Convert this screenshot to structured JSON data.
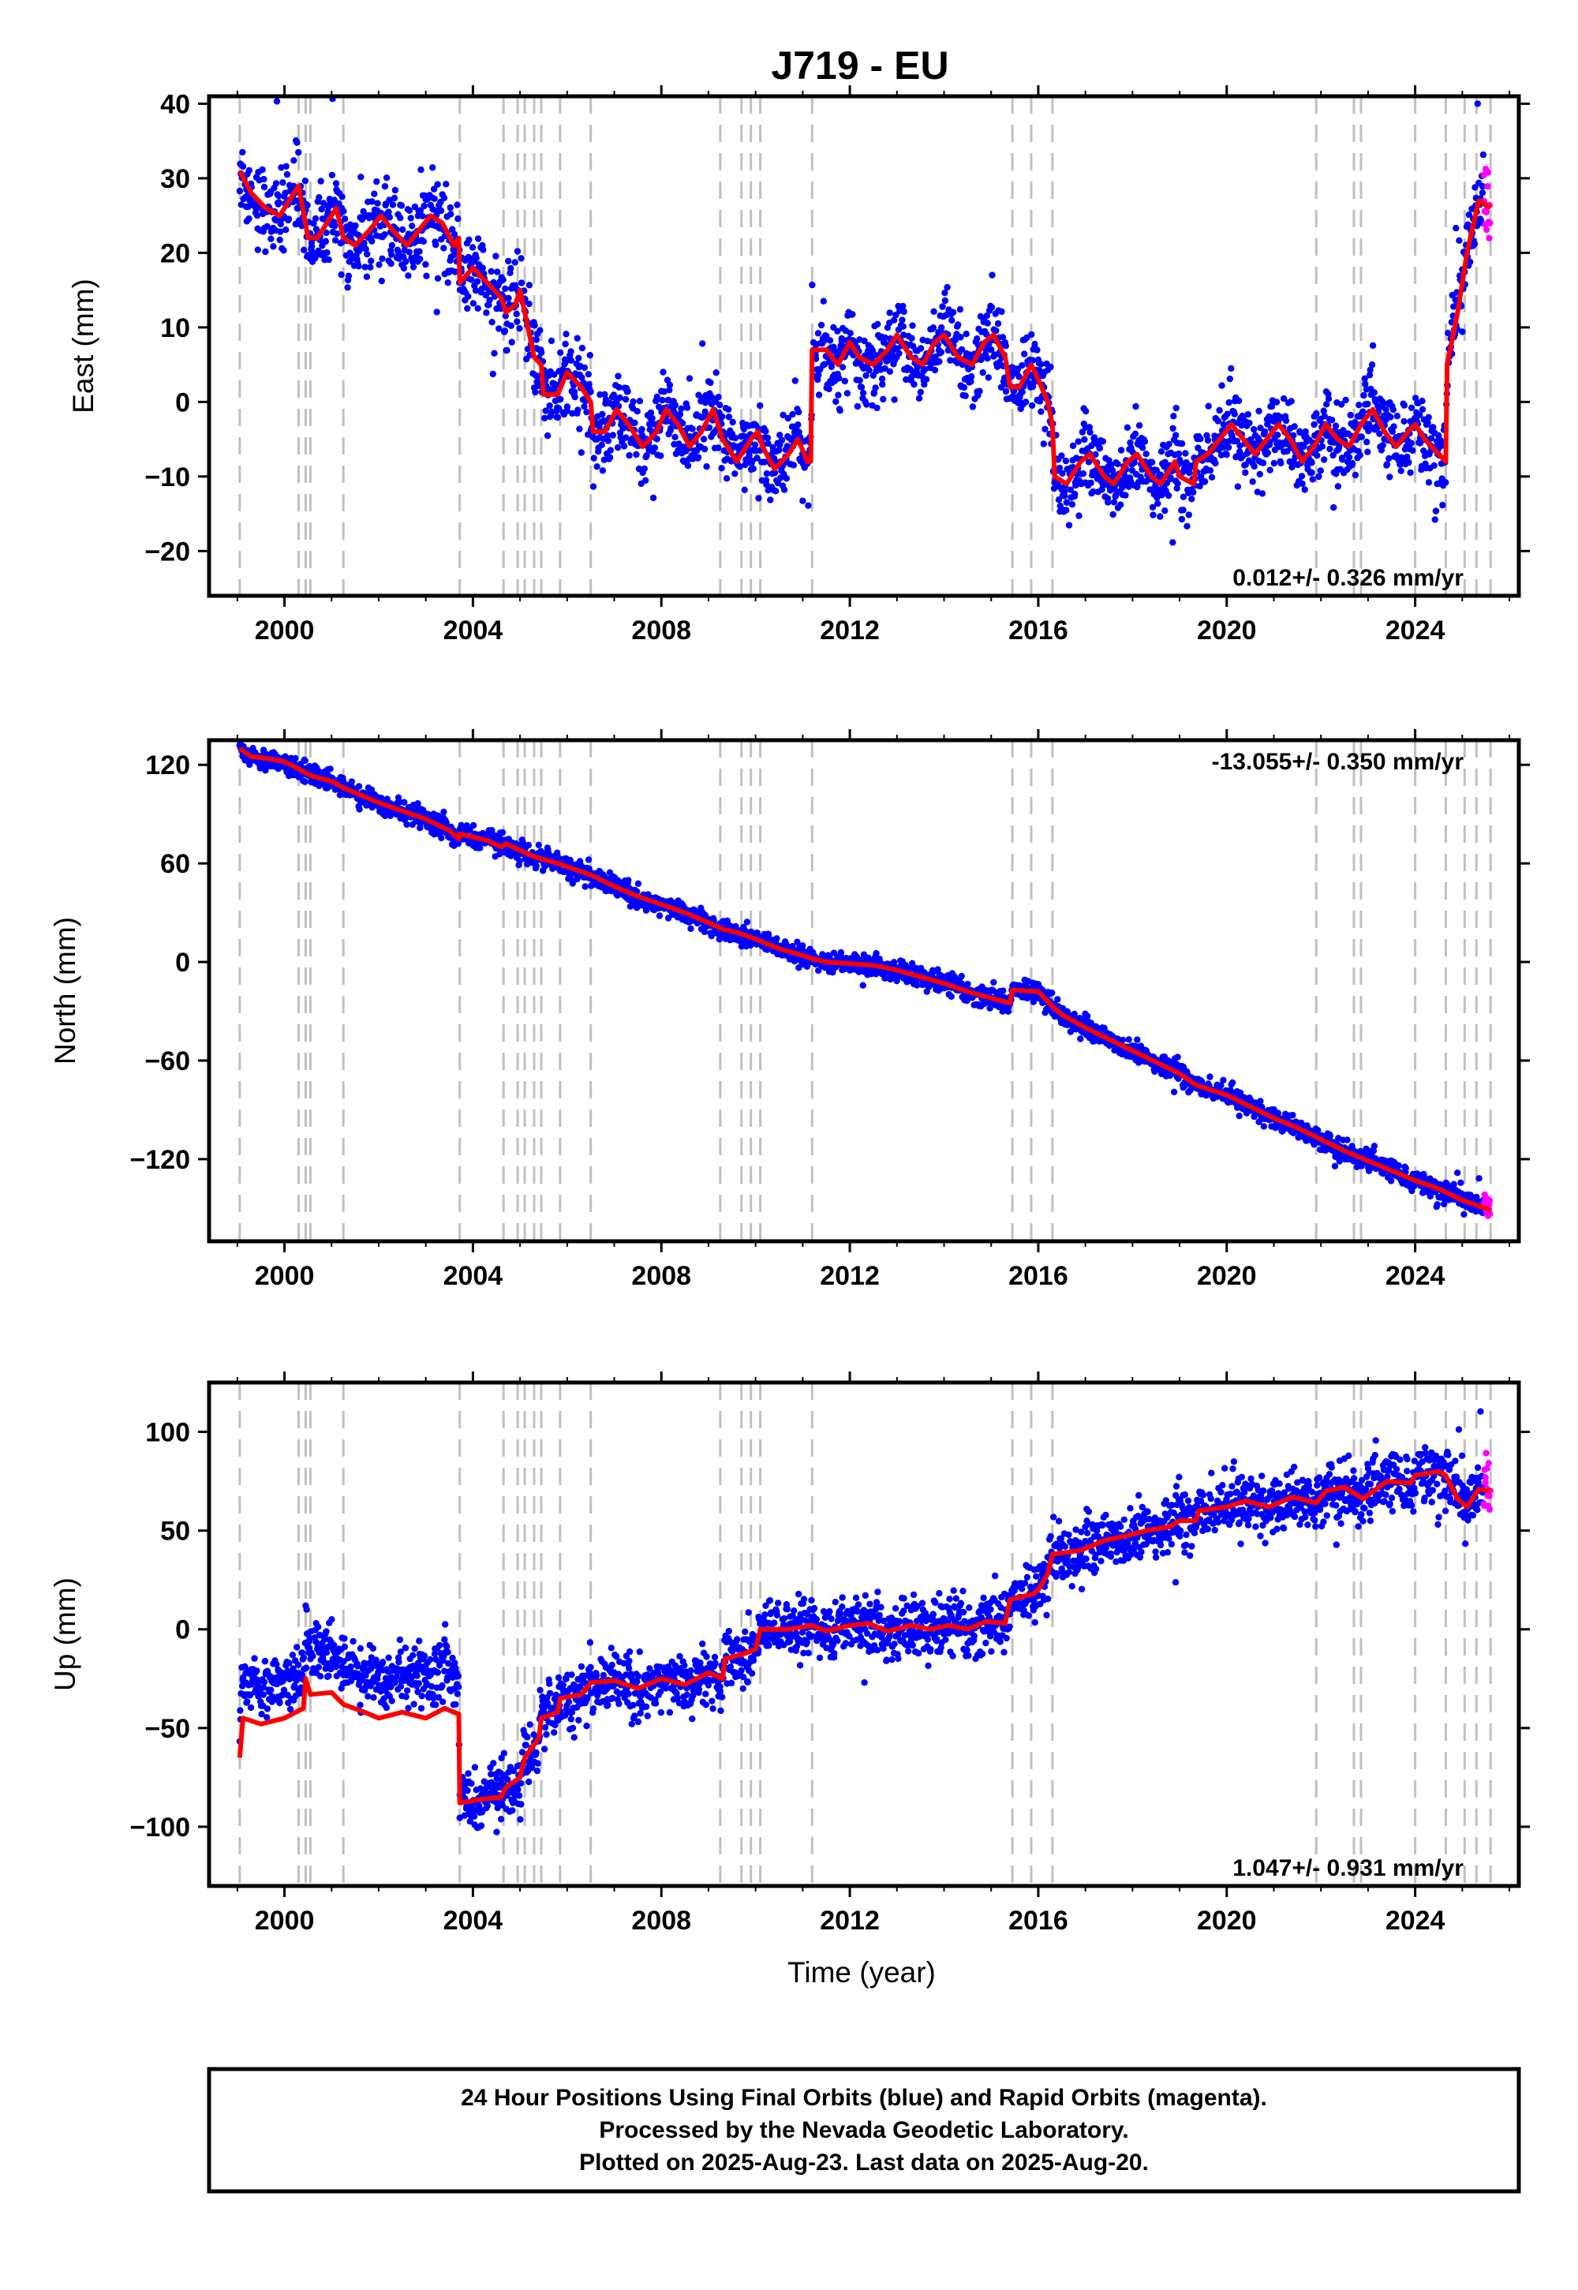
{
  "title": "J719 - EU",
  "xlabel": "Time (year)",
  "colors": {
    "final": "#0000ff",
    "rapid": "#ff00ff",
    "model": "#ff0000",
    "break": "#c0c0c0"
  },
  "footer": {
    "line1": "24 Hour Positions Using Final Orbits (blue) and Rapid Orbits (magenta).",
    "line2": "Processed by the Nevada Geodetic Laboratory.",
    "line3": "Plotted on 2025-Aug-23. Last data on 2025-Aug-20."
  },
  "chart_data": [
    {
      "type": "scatter",
      "ylabel": "East (mm)",
      "rate_label": "0.012+/- 0.326 mm/yr",
      "xlim": [
        1998.4,
        2026.2
      ],
      "ylim": [
        -26,
        41
      ],
      "xticks": [
        2000,
        2004,
        2008,
        2012,
        2016,
        2020,
        2024
      ],
      "yticks": [
        -20,
        -10,
        0,
        10,
        20,
        30,
        40
      ],
      "model": [
        [
          1999.05,
          31
        ],
        [
          1999.3,
          28
        ],
        [
          1999.6,
          26
        ],
        [
          1999.9,
          25
        ],
        [
          2000.1,
          27
        ],
        [
          2000.3,
          29
        ],
        [
          2000.5,
          22
        ],
        [
          2000.7,
          22
        ],
        [
          2000.9,
          24
        ],
        [
          2001.1,
          26
        ],
        [
          2001.25,
          22
        ],
        [
          2001.5,
          21
        ],
        [
          2001.8,
          23
        ],
        [
          2002.05,
          25
        ],
        [
          2002.3,
          23
        ],
        [
          2002.6,
          21
        ],
        [
          2002.85,
          23
        ],
        [
          2003.1,
          25
        ],
        [
          2003.35,
          24
        ],
        [
          2003.6,
          21
        ],
        [
          2003.7,
          22
        ],
        [
          2003.72,
          16
        ],
        [
          2004.0,
          18
        ],
        [
          2004.3,
          16
        ],
        [
          2004.6,
          14
        ],
        [
          2004.7,
          12
        ],
        [
          2004.9,
          13
        ],
        [
          2005.0,
          15
        ],
        [
          2005.1,
          12
        ],
        [
          2005.3,
          6
        ],
        [
          2005.45,
          5
        ],
        [
          2005.5,
          1
        ],
        [
          2005.8,
          1
        ],
        [
          2006.0,
          4
        ],
        [
          2006.3,
          2
        ],
        [
          2006.5,
          0
        ],
        [
          2006.55,
          -4
        ],
        [
          2006.8,
          -4
        ],
        [
          2007.05,
          -1
        ],
        [
          2007.3,
          -3
        ],
        [
          2007.6,
          -6
        ],
        [
          2007.9,
          -4
        ],
        [
          2008.1,
          -1
        ],
        [
          2008.35,
          -3
        ],
        [
          2008.6,
          -6
        ],
        [
          2008.85,
          -4
        ],
        [
          2009.1,
          -1
        ],
        [
          2009.3,
          -5
        ],
        [
          2009.6,
          -8
        ],
        [
          2009.9,
          -5
        ],
        [
          2010.05,
          -4
        ],
        [
          2010.15,
          -6
        ],
        [
          2010.4,
          -9
        ],
        [
          2010.7,
          -7
        ],
        [
          2010.9,
          -5
        ],
        [
          2011.1,
          -8
        ],
        [
          2011.17,
          -8
        ],
        [
          2011.2,
          7
        ],
        [
          2011.5,
          7
        ],
        [
          2011.75,
          5
        ],
        [
          2012.0,
          8
        ],
        [
          2012.2,
          6
        ],
        [
          2012.5,
          5
        ],
        [
          2012.8,
          7
        ],
        [
          2013.0,
          9
        ],
        [
          2013.3,
          6
        ],
        [
          2013.55,
          5
        ],
        [
          2013.8,
          8
        ],
        [
          2014.0,
          9
        ],
        [
          2014.3,
          6
        ],
        [
          2014.6,
          5
        ],
        [
          2014.85,
          8
        ],
        [
          2015.05,
          9
        ],
        [
          2015.3,
          6
        ],
        [
          2015.4,
          2
        ],
        [
          2015.6,
          2
        ],
        [
          2015.85,
          5
        ],
        [
          2016.0,
          3
        ],
        [
          2016.2,
          0
        ],
        [
          2016.3,
          -3
        ],
        [
          2016.35,
          -10
        ],
        [
          2016.6,
          -11
        ],
        [
          2016.9,
          -8
        ],
        [
          2017.1,
          -7
        ],
        [
          2017.4,
          -10
        ],
        [
          2017.6,
          -11
        ],
        [
          2017.9,
          -8
        ],
        [
          2018.1,
          -7
        ],
        [
          2018.4,
          -10
        ],
        [
          2018.6,
          -11
        ],
        [
          2018.9,
          -8
        ],
        [
          2019.0,
          -10
        ],
        [
          2019.3,
          -11
        ],
        [
          2019.35,
          -8
        ],
        [
          2019.6,
          -7
        ],
        [
          2019.85,
          -5
        ],
        [
          2020.1,
          -3
        ],
        [
          2020.35,
          -5
        ],
        [
          2020.6,
          -7
        ],
        [
          2020.85,
          -5
        ],
        [
          2021.1,
          -3
        ],
        [
          2021.35,
          -5
        ],
        [
          2021.6,
          -8
        ],
        [
          2021.85,
          -6
        ],
        [
          2022.1,
          -3
        ],
        [
          2022.35,
          -5
        ],
        [
          2022.6,
          -6
        ],
        [
          2022.85,
          -3
        ],
        [
          2023.1,
          -1
        ],
        [
          2023.35,
          -4
        ],
        [
          2023.6,
          -6
        ],
        [
          2023.85,
          -4
        ],
        [
          2024.0,
          -3
        ],
        [
          2024.2,
          -5
        ],
        [
          2024.5,
          -7
        ],
        [
          2024.65,
          -8
        ],
        [
          2024.68,
          5
        ],
        [
          2024.9,
          12
        ],
        [
          2025.1,
          20
        ],
        [
          2025.35,
          27
        ],
        [
          2025.6,
          26
        ]
      ]
    },
    {
      "type": "scatter",
      "ylabel": "North (mm)",
      "rate_label": "-13.055+/- 0.350 mm/yr",
      "xlim": [
        1998.4,
        2026.2
      ],
      "ylim": [
        -170,
        135
      ],
      "xticks": [
        2000,
        2004,
        2008,
        2012,
        2016,
        2020,
        2024
      ],
      "yticks": [
        -120,
        -60,
        0,
        60,
        120
      ],
      "model": [
        [
          1999.05,
          130
        ],
        [
          1999.3,
          125
        ],
        [
          1999.6,
          124
        ],
        [
          2000.0,
          122
        ],
        [
          2000.4,
          116
        ],
        [
          2000.6,
          113
        ],
        [
          2001.0,
          110
        ],
        [
          2001.25,
          106
        ],
        [
          2002.0,
          97
        ],
        [
          2002.5,
          92
        ],
        [
          2003.0,
          87
        ],
        [
          2003.5,
          80
        ],
        [
          2003.7,
          75
        ],
        [
          2003.72,
          78
        ],
        [
          2004.3,
          74
        ],
        [
          2004.6,
          70
        ],
        [
          2004.7,
          72
        ],
        [
          2005.0,
          68
        ],
        [
          2005.3,
          64
        ],
        [
          2005.8,
          60
        ],
        [
          2006.5,
          53
        ],
        [
          2007.0,
          46
        ],
        [
          2007.5,
          40
        ],
        [
          2008.0,
          35
        ],
        [
          2008.5,
          30
        ],
        [
          2009.0,
          24
        ],
        [
          2009.3,
          20
        ],
        [
          2009.6,
          18
        ],
        [
          2010.0,
          14
        ],
        [
          2010.5,
          8
        ],
        [
          2011.0,
          4
        ],
        [
          2011.2,
          2
        ],
        [
          2011.5,
          0
        ],
        [
          2012.0,
          -1
        ],
        [
          2012.5,
          -2
        ],
        [
          2013.0,
          -5
        ],
        [
          2013.5,
          -9
        ],
        [
          2014.0,
          -13
        ],
        [
          2014.5,
          -18
        ],
        [
          2015.0,
          -22
        ],
        [
          2015.4,
          -25
        ],
        [
          2015.45,
          -17
        ],
        [
          2016.0,
          -18
        ],
        [
          2016.3,
          -27
        ],
        [
          2016.5,
          -32
        ],
        [
          2017.0,
          -40
        ],
        [
          2017.5,
          -47
        ],
        [
          2018.0,
          -54
        ],
        [
          2018.5,
          -61
        ],
        [
          2019.0,
          -68
        ],
        [
          2019.35,
          -75
        ],
        [
          2020.0,
          -81
        ],
        [
          2020.5,
          -88
        ],
        [
          2021.0,
          -95
        ],
        [
          2021.5,
          -101
        ],
        [
          2022.0,
          -108
        ],
        [
          2022.5,
          -115
        ],
        [
          2023.0,
          -121
        ],
        [
          2023.5,
          -127
        ],
        [
          2024.0,
          -133
        ],
        [
          2024.5,
          -138
        ],
        [
          2025.0,
          -145
        ],
        [
          2025.6,
          -151
        ]
      ]
    },
    {
      "type": "scatter",
      "ylabel": "Up (mm)",
      "rate_label": "1.047+/- 0.931 mm/yr",
      "xlim": [
        1998.4,
        2026.2
      ],
      "ylim": [
        -130,
        125
      ],
      "xticks": [
        2000,
        2004,
        2008,
        2012,
        2016,
        2020,
        2024
      ],
      "yticks": [
        -100,
        -50,
        0,
        50,
        100
      ],
      "model": [
        [
          1999.05,
          -65
        ],
        [
          1999.12,
          -45
        ],
        [
          1999.5,
          -48
        ],
        [
          2000.0,
          -45
        ],
        [
          2000.4,
          -40
        ],
        [
          2000.45,
          -25
        ],
        [
          2000.55,
          -33
        ],
        [
          2001.0,
          -32
        ],
        [
          2001.25,
          -38
        ],
        [
          2001.7,
          -42
        ],
        [
          2002.0,
          -45
        ],
        [
          2002.5,
          -42
        ],
        [
          2003.0,
          -45
        ],
        [
          2003.4,
          -40
        ],
        [
          2003.7,
          -43
        ],
        [
          2003.72,
          -88
        ],
        [
          2004.2,
          -86
        ],
        [
          2004.6,
          -85
        ],
        [
          2004.7,
          -80
        ],
        [
          2005.0,
          -75
        ],
        [
          2005.1,
          -65
        ],
        [
          2005.4,
          -55
        ],
        [
          2005.45,
          -45
        ],
        [
          2005.8,
          -42
        ],
        [
          2005.85,
          -35
        ],
        [
          2006.3,
          -33
        ],
        [
          2006.5,
          -27
        ],
        [
          2007.0,
          -26
        ],
        [
          2007.5,
          -30
        ],
        [
          2008.0,
          -25
        ],
        [
          2008.5,
          -28
        ],
        [
          2009.0,
          -22
        ],
        [
          2009.3,
          -25
        ],
        [
          2009.35,
          -15
        ],
        [
          2009.8,
          -12
        ],
        [
          2010.0,
          -10
        ],
        [
          2010.1,
          0
        ],
        [
          2010.7,
          0
        ],
        [
          2011.2,
          2
        ],
        [
          2011.5,
          -1
        ],
        [
          2012.0,
          2
        ],
        [
          2012.4,
          3
        ],
        [
          2012.8,
          -1
        ],
        [
          2013.3,
          2
        ],
        [
          2013.7,
          0
        ],
        [
          2014.1,
          2
        ],
        [
          2014.5,
          0
        ],
        [
          2014.9,
          4
        ],
        [
          2015.3,
          3
        ],
        [
          2015.4,
          15
        ],
        [
          2015.9,
          18
        ],
        [
          2016.0,
          20
        ],
        [
          2016.2,
          28
        ],
        [
          2016.3,
          38
        ],
        [
          2016.9,
          40
        ],
        [
          2017.4,
          45
        ],
        [
          2017.8,
          47
        ],
        [
          2018.3,
          50
        ],
        [
          2018.8,
          52
        ],
        [
          2019.0,
          55
        ],
        [
          2019.35,
          55
        ],
        [
          2019.4,
          60
        ],
        [
          2020.0,
          62
        ],
        [
          2020.4,
          65
        ],
        [
          2020.9,
          62
        ],
        [
          2021.4,
          67
        ],
        [
          2021.9,
          64
        ],
        [
          2022.1,
          70
        ],
        [
          2022.5,
          72
        ],
        [
          2022.9,
          66
        ],
        [
          2023.0,
          68
        ],
        [
          2023.4,
          75
        ],
        [
          2023.9,
          74
        ],
        [
          2024.0,
          78
        ],
        [
          2024.5,
          80
        ],
        [
          2024.65,
          78
        ],
        [
          2024.9,
          66
        ],
        [
          2025.1,
          62
        ],
        [
          2025.35,
          71
        ],
        [
          2025.6,
          70
        ]
      ]
    }
  ],
  "breaks": [
    1999.05,
    2000.3,
    2000.45,
    2000.55,
    2001.25,
    2003.72,
    2004.65,
    2004.95,
    2005.1,
    2005.3,
    2005.45,
    2005.85,
    2006.5,
    2009.25,
    2009.7,
    2009.9,
    2010.1,
    2011.2,
    2015.45,
    2015.85,
    2016.3,
    2021.9,
    2022.7,
    2022.85,
    2024.0,
    2024.65,
    2025.05,
    2025.3,
    2025.6
  ]
}
